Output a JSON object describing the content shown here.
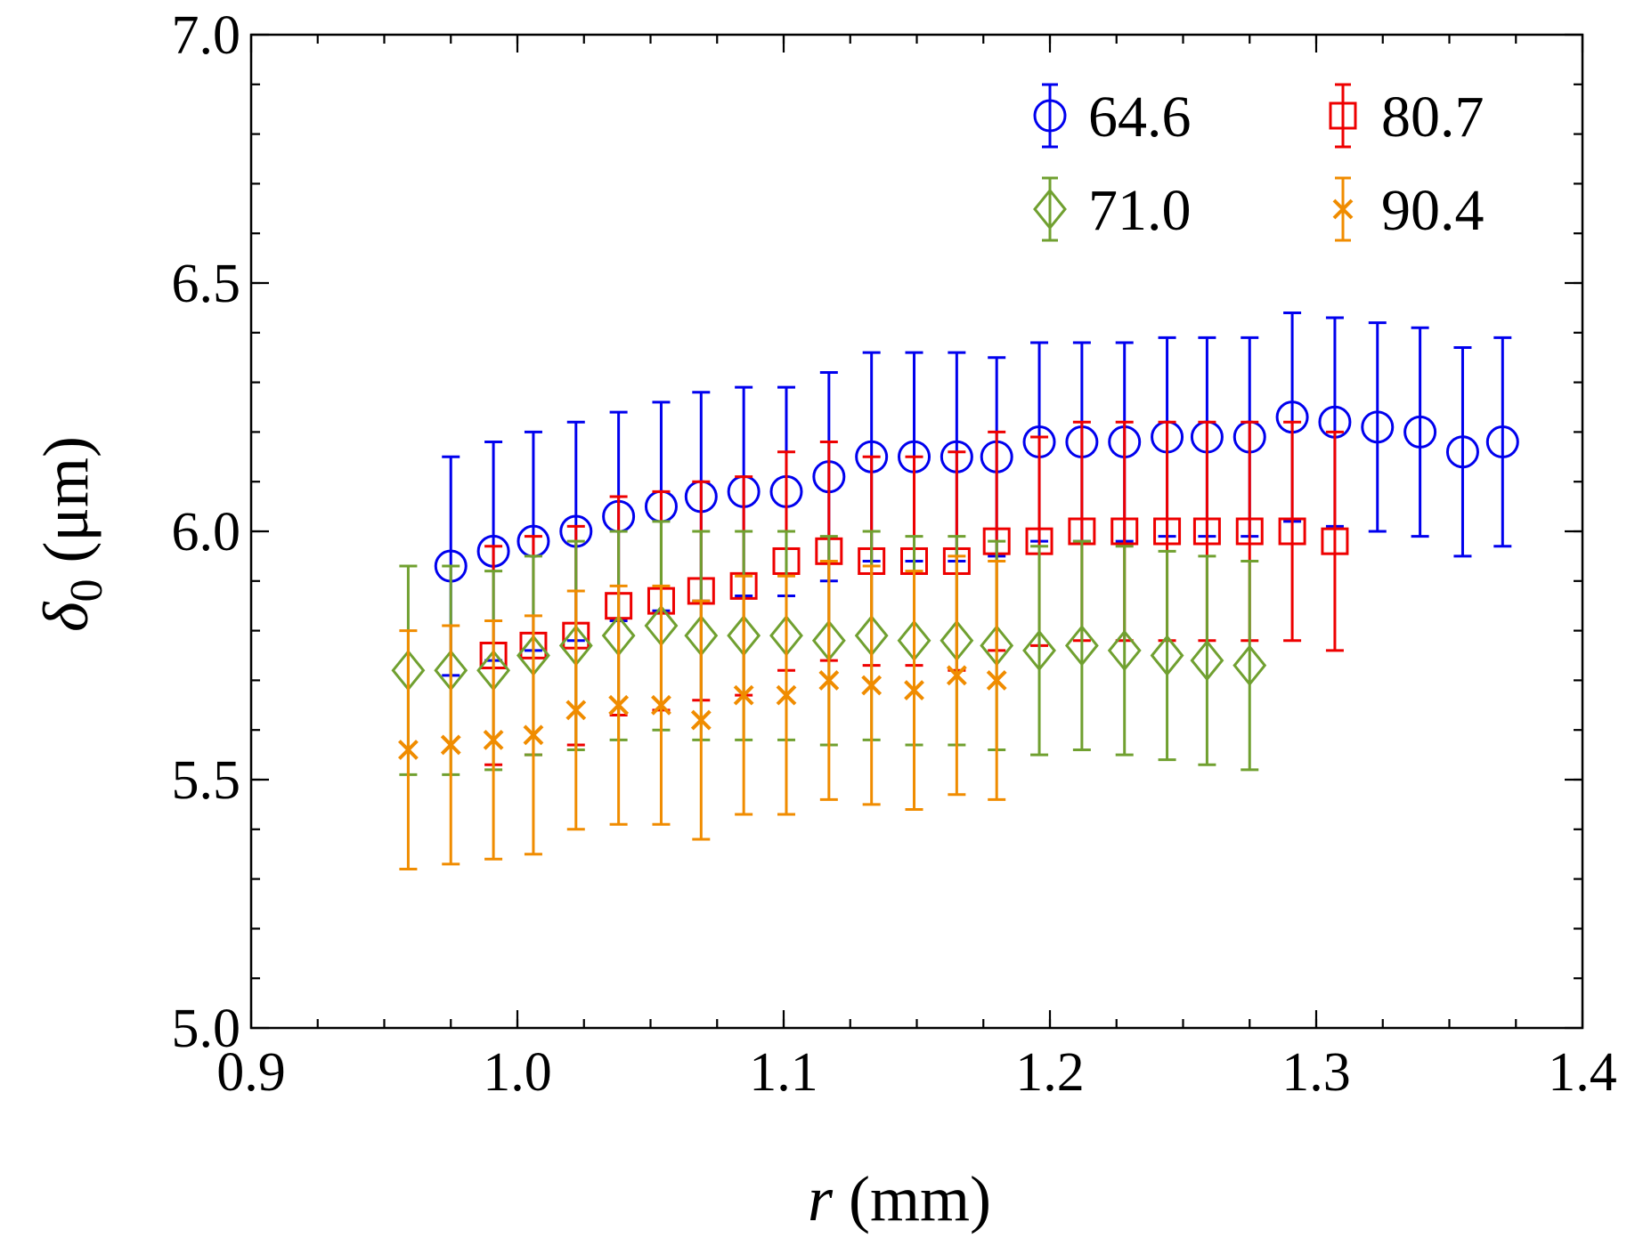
{
  "chart_data": {
    "type": "scatter",
    "xlabel": {
      "var": "r",
      "unit": "(mm)"
    },
    "ylabel": {
      "sym": "δ",
      "sub": "0",
      "unit": "(μm)"
    },
    "xlim": [
      0.9,
      1.4
    ],
    "ylim": [
      5.0,
      7.0
    ],
    "xticks": [
      "0.9",
      "1.0",
      "1.1",
      "1.2",
      "1.3",
      "1.4"
    ],
    "yticks": [
      "5.0",
      "5.5",
      "6.0",
      "6.5",
      "7.0"
    ],
    "x_minor_step": 0.025,
    "y_minor_step": 0.1,
    "legend_position": "top-right",
    "series": [
      {
        "name": "64.6",
        "marker": "circle",
        "color": "#0000ee",
        "x": [
          0.975,
          0.991,
          1.006,
          1.022,
          1.038,
          1.054,
          1.069,
          1.085,
          1.101,
          1.117,
          1.133,
          1.149,
          1.165,
          1.18,
          1.196,
          1.212,
          1.228,
          1.244,
          1.259,
          1.275,
          1.291,
          1.307,
          1.323,
          1.339,
          1.355,
          1.37
        ],
        "y": [
          5.93,
          5.96,
          5.98,
          6.0,
          6.03,
          6.05,
          6.07,
          6.08,
          6.08,
          6.11,
          6.15,
          6.15,
          6.15,
          6.15,
          6.18,
          6.18,
          6.18,
          6.19,
          6.19,
          6.19,
          6.23,
          6.22,
          6.21,
          6.2,
          6.16,
          6.18
        ],
        "err": [
          0.22,
          0.22,
          0.22,
          0.22,
          0.21,
          0.21,
          0.21,
          0.21,
          0.21,
          0.21,
          0.21,
          0.21,
          0.21,
          0.2,
          0.2,
          0.2,
          0.2,
          0.2,
          0.2,
          0.2,
          0.21,
          0.21,
          0.21,
          0.21,
          0.21,
          0.21
        ]
      },
      {
        "name": "80.7",
        "marker": "square",
        "color": "#ee0000",
        "x": [
          0.991,
          1.006,
          1.022,
          1.038,
          1.054,
          1.069,
          1.085,
          1.101,
          1.117,
          1.133,
          1.149,
          1.165,
          1.18,
          1.196,
          1.212,
          1.228,
          1.244,
          1.259,
          1.275,
          1.291,
          1.307
        ],
        "y": [
          5.75,
          5.77,
          5.79,
          5.85,
          5.86,
          5.88,
          5.89,
          5.94,
          5.96,
          5.94,
          5.94,
          5.94,
          5.98,
          5.98,
          6.0,
          6.0,
          6.0,
          6.0,
          6.0,
          6.0,
          5.98
        ],
        "err": [
          0.22,
          0.22,
          0.22,
          0.22,
          0.22,
          0.22,
          0.22,
          0.22,
          0.22,
          0.21,
          0.21,
          0.22,
          0.22,
          0.21,
          0.22,
          0.22,
          0.22,
          0.22,
          0.22,
          0.22,
          0.22
        ]
      },
      {
        "name": "71.0",
        "marker": "diamond",
        "color": "#70a030",
        "x": [
          0.959,
          0.975,
          0.991,
          1.006,
          1.022,
          1.038,
          1.054,
          1.069,
          1.085,
          1.101,
          1.117,
          1.133,
          1.149,
          1.165,
          1.18,
          1.196,
          1.212,
          1.228,
          1.244,
          1.259,
          1.275
        ],
        "y": [
          5.72,
          5.72,
          5.72,
          5.75,
          5.77,
          5.79,
          5.81,
          5.79,
          5.79,
          5.79,
          5.78,
          5.79,
          5.78,
          5.78,
          5.77,
          5.76,
          5.77,
          5.76,
          5.75,
          5.74,
          5.73
        ],
        "err": [
          0.21,
          0.21,
          0.2,
          0.2,
          0.21,
          0.21,
          0.21,
          0.21,
          0.21,
          0.21,
          0.21,
          0.21,
          0.21,
          0.21,
          0.21,
          0.21,
          0.21,
          0.21,
          0.21,
          0.21,
          0.21
        ]
      },
      {
        "name": "90.4",
        "marker": "x",
        "color": "#f08c00",
        "x": [
          0.959,
          0.975,
          0.991,
          1.006,
          1.022,
          1.038,
          1.054,
          1.069,
          1.085,
          1.101,
          1.117,
          1.133,
          1.149,
          1.165,
          1.18
        ],
        "y": [
          5.56,
          5.57,
          5.58,
          5.59,
          5.64,
          5.65,
          5.65,
          5.62,
          5.67,
          5.67,
          5.7,
          5.69,
          5.68,
          5.71,
          5.7
        ],
        "err": [
          0.24,
          0.24,
          0.24,
          0.24,
          0.24,
          0.24,
          0.24,
          0.24,
          0.24,
          0.24,
          0.24,
          0.24,
          0.24,
          0.24,
          0.24
        ]
      }
    ]
  }
}
